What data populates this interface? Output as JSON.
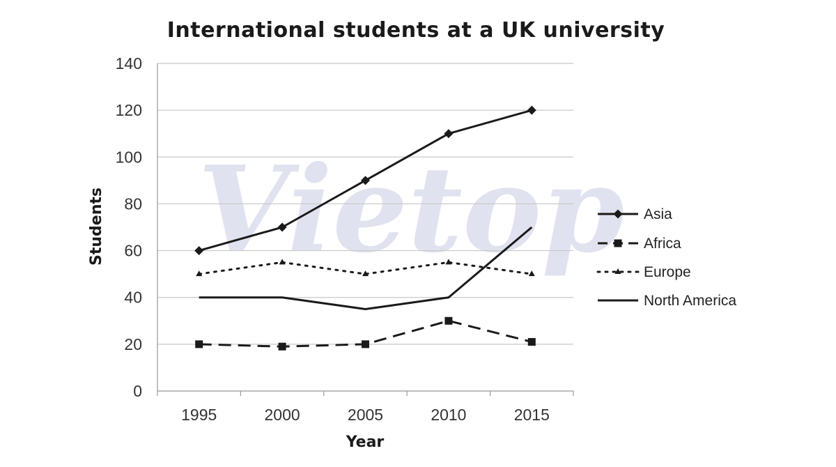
{
  "watermark_text": "Vietop",
  "chart_data": {
    "type": "line",
    "title": "International students at a UK university",
    "xlabel": "Year",
    "ylabel": "Students",
    "categories": [
      "1995",
      "2000",
      "2005",
      "2010",
      "2015"
    ],
    "ylim": [
      0,
      140
    ],
    "yticks": [
      "0",
      "20",
      "40",
      "60",
      "80",
      "100",
      "120",
      "140"
    ],
    "grid": "horizontal",
    "legend_position": "right",
    "series": [
      {
        "name": "Asia",
        "values": [
          60,
          70,
          90,
          110,
          120
        ],
        "line_style": "solid",
        "marker": "diamond",
        "color": "#1a1a1a"
      },
      {
        "name": "Africa",
        "values": [
          20,
          19,
          20,
          30,
          21
        ],
        "line_style": "dashed",
        "marker": "square",
        "color": "#1a1a1a"
      },
      {
        "name": "Europe",
        "values": [
          50,
          55,
          50,
          55,
          50
        ],
        "line_style": "dotted",
        "marker": "triangle",
        "color": "#1a1a1a"
      },
      {
        "name": "North America",
        "values": [
          40,
          40,
          35,
          40,
          70
        ],
        "line_style": "solid",
        "marker": "none",
        "color": "#1a1a1a"
      }
    ]
  }
}
